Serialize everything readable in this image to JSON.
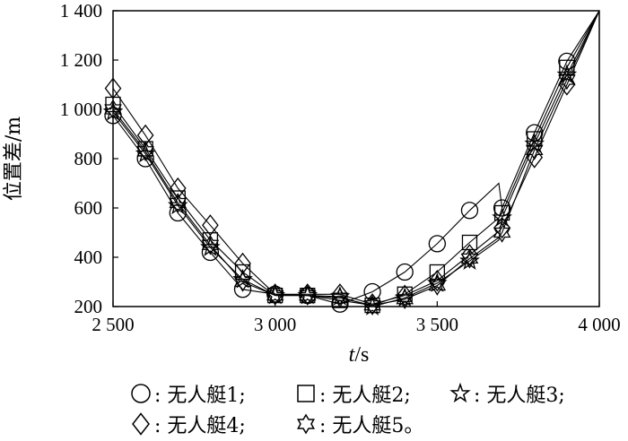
{
  "chart_data": {
    "type": "line",
    "xlabel_italic": "t",
    "xlabel_unit": "/s",
    "ylabel": "位置差/m",
    "xlim": [
      2500,
      4000
    ],
    "ylim": [
      200,
      1400
    ],
    "x_ticks": [
      2500,
      3000,
      3500,
      4000
    ],
    "x_tick_labels": [
      "2 500",
      "3 000",
      "3 500",
      "4 000"
    ],
    "y_ticks": [
      200,
      400,
      600,
      800,
      1000,
      1200,
      1400
    ],
    "y_tick_labels": [
      "200",
      "400",
      "600",
      "800",
      "1 000",
      "1 200",
      "1 400"
    ],
    "grid": false,
    "legend_position": "bottom",
    "series": [
      {
        "name": "无人艇1",
        "marker": "circle",
        "x": [
          2500,
          2600,
          2700,
          2800,
          2900,
          3000,
          3100,
          3200,
          3300,
          3400,
          3500,
          3600,
          3690,
          3700,
          3800,
          3900,
          4000
        ],
        "y": [
          975,
          800,
          580,
          420,
          270,
          250,
          245,
          210,
          260,
          340,
          455,
          590,
          700,
          600,
          905,
          1195,
          1400
        ],
        "markers_x": [
          2500,
          2600,
          2700,
          2800,
          2900,
          3000,
          3100,
          3200,
          3300,
          3400,
          3500,
          3600,
          3700,
          3800,
          3900
        ],
        "markers_y": [
          975,
          800,
          580,
          420,
          270,
          250,
          245,
          210,
          260,
          340,
          455,
          590,
          600,
          905,
          1195
        ]
      },
      {
        "name": "无人艇2",
        "marker": "square",
        "x": [
          2500,
          2600,
          2700,
          2800,
          2900,
          3000,
          3100,
          3200,
          3300,
          3400,
          3500,
          3600,
          3690,
          3700,
          3800,
          3900,
          4000
        ],
        "y": [
          1020,
          840,
          640,
          470,
          340,
          245,
          245,
          225,
          205,
          250,
          340,
          460,
          560,
          580,
          880,
          1170,
          1400
        ],
        "markers_x": [
          2500,
          2600,
          2700,
          2800,
          2900,
          3000,
          3100,
          3200,
          3300,
          3400,
          3500,
          3600,
          3700,
          3800,
          3900
        ],
        "markers_y": [
          1020,
          840,
          640,
          470,
          340,
          245,
          245,
          225,
          205,
          250,
          340,
          460,
          580,
          880,
          1170
        ]
      },
      {
        "name": "无人艇3",
        "marker": "star",
        "x": [
          2500,
          2600,
          2700,
          2800,
          2900,
          3000,
          3100,
          3200,
          3300,
          3400,
          3500,
          3600,
          3690,
          3700,
          3800,
          3900,
          4000
        ],
        "y": [
          990,
          820,
          610,
          440,
          310,
          245,
          245,
          240,
          200,
          235,
          295,
          385,
          470,
          560,
          860,
          1140,
          1400
        ],
        "markers_x": [
          2500,
          2600,
          2700,
          2800,
          2900,
          3000,
          3100,
          3200,
          3300,
          3400,
          3500,
          3600,
          3700,
          3800,
          3900
        ],
        "markers_y": [
          990,
          820,
          610,
          440,
          310,
          245,
          245,
          240,
          200,
          235,
          295,
          385,
          560,
          860,
          1140
        ]
      },
      {
        "name": "无人艇4",
        "marker": "diamond",
        "x": [
          2500,
          2600,
          2700,
          2800,
          2900,
          3000,
          3100,
          3200,
          3300,
          3400,
          3500,
          3600,
          3690,
          3700,
          3800,
          3900,
          4000
        ],
        "y": [
          1085,
          895,
          680,
          530,
          375,
          250,
          250,
          250,
          210,
          245,
          305,
          410,
          505,
          520,
          805,
          1100,
          1400
        ],
        "markers_x": [
          2500,
          2600,
          2700,
          2800,
          2900,
          3000,
          3100,
          3200,
          3300,
          3400,
          3500,
          3600,
          3700,
          3800,
          3900
        ],
        "markers_y": [
          1085,
          895,
          680,
          530,
          375,
          250,
          250,
          250,
          210,
          245,
          305,
          410,
          520,
          805,
          1100
        ]
      },
      {
        "name": "无人艇5",
        "marker": "star-of-david",
        "x": [
          2500,
          2600,
          2700,
          2800,
          2900,
          3000,
          3100,
          3200,
          3300,
          3400,
          3500,
          3600,
          3690,
          3700,
          3800,
          3900,
          4000
        ],
        "y": [
          1000,
          830,
          620,
          450,
          300,
          245,
          245,
          235,
          205,
          230,
          285,
          395,
          480,
          500,
          835,
          1120,
          1400
        ],
        "markers_x": [
          2500,
          2600,
          2700,
          2800,
          2900,
          3000,
          3100,
          3200,
          3300,
          3400,
          3500,
          3600,
          3700,
          3800,
          3900
        ],
        "markers_y": [
          1000,
          830,
          620,
          450,
          300,
          245,
          245,
          235,
          205,
          230,
          285,
          395,
          500,
          835,
          1120
        ]
      }
    ]
  },
  "legend": {
    "items": [
      {
        "marker": "circle",
        "text": ": 无人艇1;"
      },
      {
        "marker": "square",
        "text": ": 无人艇2;"
      },
      {
        "marker": "star",
        "text": ": 无人艇3;"
      },
      {
        "marker": "diamond",
        "text": ": 无人艇4;"
      },
      {
        "marker": "star-of-david",
        "text": ": 无人艇5。"
      }
    ]
  }
}
